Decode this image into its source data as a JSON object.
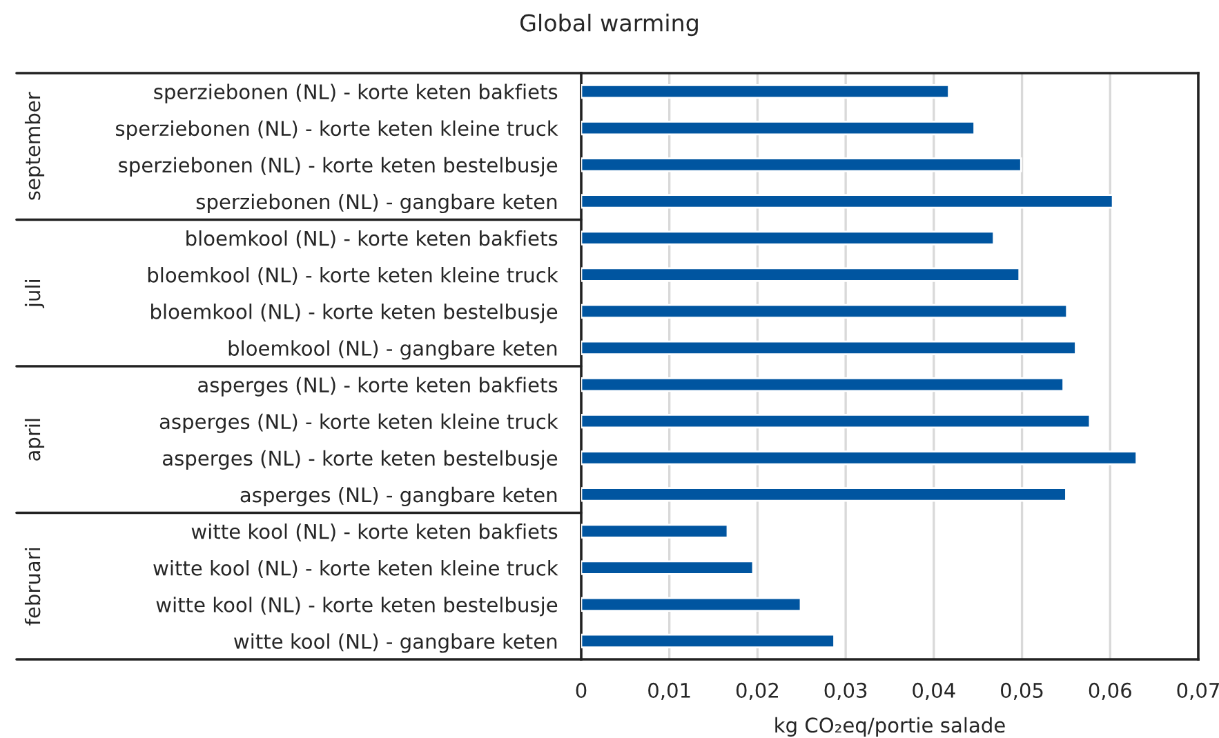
{
  "chart_data": {
    "type": "bar",
    "orientation": "horizontal",
    "title": "Global warming",
    "xlabel": "kg CO₂eq/portie salade",
    "categories": [
      "sperziebonen (NL) - korte keten bakfiets",
      "sperziebonen (NL) - korte keten kleine truck",
      "sperziebonen (NL) - korte keten bestelbusje",
      "sperziebonen (NL) - gangbare keten",
      "bloemkool (NL) - korte keten bakfiets",
      "bloemkool (NL) - korte keten kleine truck",
      "bloemkool (NL) - korte keten bestelbusje",
      "bloemkool (NL) - gangbare keten",
      "asperges (NL) - korte keten bakfiets",
      "asperges (NL) - korte keten kleine truck",
      "asperges (NL) - korte keten bestelbusje",
      "asperges (NL) - gangbare keten",
      "witte kool (NL) - korte keten bakfiets",
      "witte kool (NL) - korte keten kleine truck",
      "witte kool (NL) - korte keten bestelbusje",
      "witte kool (NL) - gangbare keten"
    ],
    "values": [
      0.0417,
      0.0446,
      0.0499,
      0.0603,
      0.0468,
      0.0497,
      0.0551,
      0.0561,
      0.0547,
      0.0577,
      0.063,
      0.055,
      0.0166,
      0.0195,
      0.0249,
      0.0287
    ],
    "color": "#0055a0",
    "annotations": [
      "september",
      "juli",
      "april",
      "februari"
    ],
    "xlim": [
      0,
      0.07
    ],
    "xticks": [
      0,
      {
        "value": 0.01,
        "label": "0,01"
      },
      {
        "value": 0.02,
        "label": "0,02"
      },
      {
        "value": 0.03,
        "label": "0,03"
      },
      {
        "value": 0.04,
        "label": "0,04"
      },
      {
        "value": 0.05,
        "label": "0,05"
      },
      {
        "value": 0.06,
        "label": "0,06"
      },
      {
        "value": 0.07,
        "label": "0,07"
      }
    ],
    "grid": "x"
  }
}
